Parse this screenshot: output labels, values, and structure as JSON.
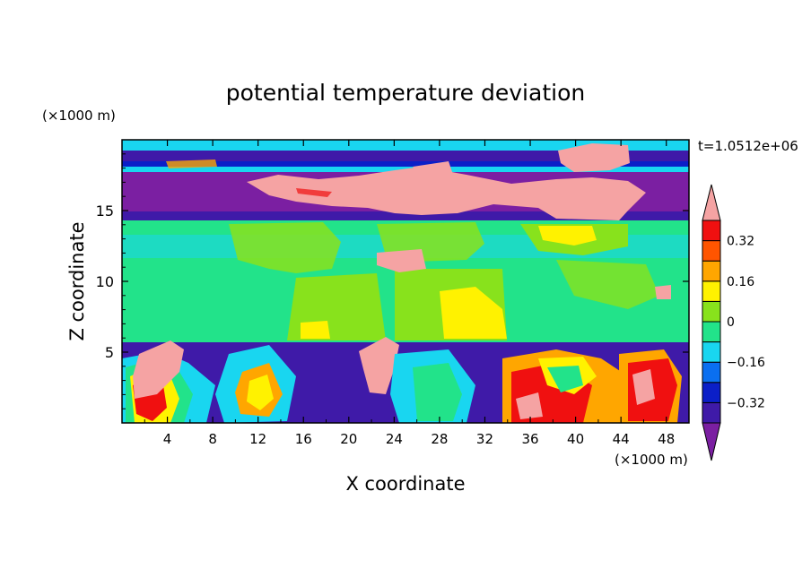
{
  "chart_data": {
    "type": "heatmap",
    "title": "potential temperature deviation",
    "xlabel": "X coordinate",
    "ylabel": "Z coordinate",
    "x_units": "(×1000 m)",
    "y_units": "(×1000 m)",
    "time_label": "t=1.0512e+06",
    "xlim": [
      0,
      50
    ],
    "ylim": [
      0,
      20
    ],
    "x_ticks": [
      "4",
      "8",
      "12",
      "16",
      "20",
      "24",
      "28",
      "32",
      "36",
      "40",
      "44",
      "48"
    ],
    "y_ticks": [
      "5",
      "10",
      "15"
    ],
    "colorbar": {
      "levels": [
        -0.4,
        -0.32,
        -0.24,
        -0.16,
        -0.08,
        0.0,
        0.08,
        0.16,
        0.24,
        0.32,
        0.4
      ],
      "labels": [
        "0.32",
        "0.16",
        "0",
        "−0.16",
        "−0.32"
      ],
      "colors": [
        "#7b1fa2",
        "#3f1aa8",
        "#0b1fc8",
        "#0a6ff0",
        "#19d6f0",
        "#22e38a",
        "#88e21c",
        "#fff200",
        "#ffa600",
        "#ff5500",
        "#f01010",
        "#f5a3a3"
      ],
      "extend": "both"
    },
    "bands": [
      {
        "z": [
          0,
          5.6
        ],
        "level": "mixed",
        "note": ""
      },
      {
        "z": [
          5.6,
          14.2
        ],
        "value": 0.0
      },
      {
        "z": [
          14.2,
          17.8
        ],
        "value": -0.4
      },
      {
        "z": [
          17.8,
          19.0
        ],
        "value": -0.32
      },
      {
        "z": [
          19.0,
          20.0
        ],
        "value": -0.08
      }
    ]
  }
}
